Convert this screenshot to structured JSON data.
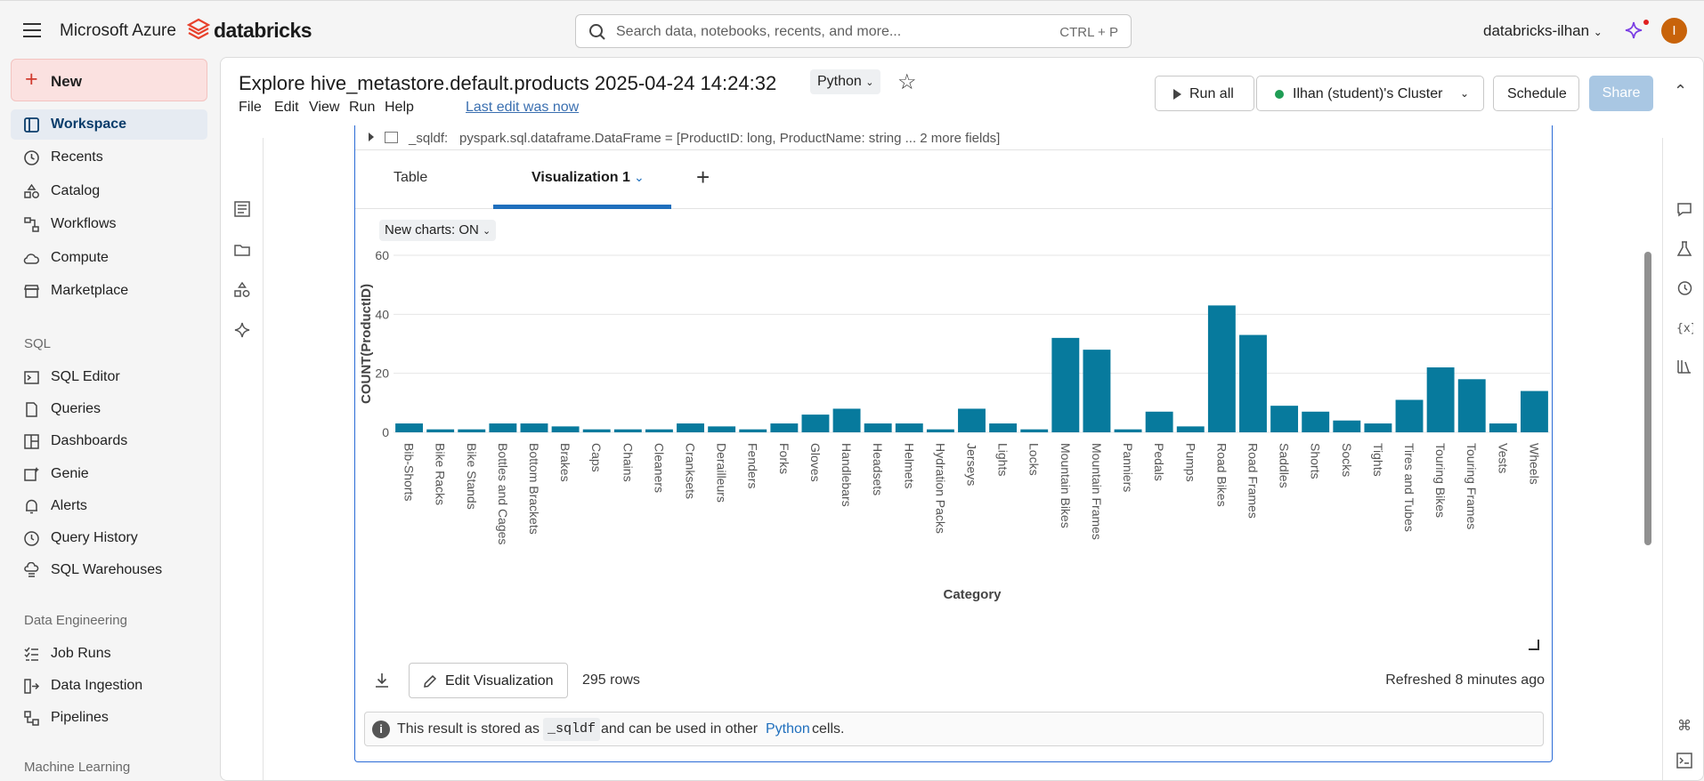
{
  "topbar": {
    "brand_ms": "Microsoft Azure",
    "brand_db": "databricks",
    "search_placeholder": "Search data, notebooks, recents, and more...",
    "search_shortcut": "CTRL + P",
    "workspace": "databricks-ilhan",
    "avatar_initial": "I"
  },
  "sidebar": {
    "new_label": "New",
    "items": [
      {
        "label": "Workspace",
        "icon": "workspace-icon",
        "active": true
      },
      {
        "label": "Recents",
        "icon": "clock-icon"
      },
      {
        "label": "Catalog",
        "icon": "catalog-icon"
      },
      {
        "label": "Workflows",
        "icon": "workflows-icon"
      },
      {
        "label": "Compute",
        "icon": "cloud-icon"
      },
      {
        "label": "Marketplace",
        "icon": "store-icon"
      }
    ],
    "sql_section": "SQL",
    "sql_items": [
      {
        "label": "SQL Editor",
        "icon": "sql-editor-icon"
      },
      {
        "label": "Queries",
        "icon": "queries-icon"
      },
      {
        "label": "Dashboards",
        "icon": "dashboards-icon"
      },
      {
        "label": "Genie",
        "icon": "genie-icon"
      },
      {
        "label": "Alerts",
        "icon": "bell-icon"
      },
      {
        "label": "Query History",
        "icon": "history-icon"
      },
      {
        "label": "SQL Warehouses",
        "icon": "warehouse-icon"
      }
    ],
    "de_section": "Data Engineering",
    "de_items": [
      {
        "label": "Job Runs",
        "icon": "job-runs-icon"
      },
      {
        "label": "Data Ingestion",
        "icon": "ingestion-icon"
      },
      {
        "label": "Pipelines",
        "icon": "pipelines-icon"
      }
    ],
    "ml_section": "Machine Learning"
  },
  "notebook": {
    "title": "Explore hive_metastore.default.products 2025-04-24 14:24:32",
    "language": "Python",
    "menu": [
      "File",
      "Edit",
      "View",
      "Run",
      "Help"
    ],
    "last_edit": "Last edit was now",
    "run_all": "Run all",
    "cluster": "Ilhan (student)'s Cluster",
    "schedule": "Schedule",
    "share": "Share"
  },
  "cell": {
    "df_name": "_sqldf:",
    "df_schema": "pyspark.sql.dataframe.DataFrame = [ProductID: long, ProductName: string ... 2 more fields]",
    "tabs": [
      "Table",
      "Visualization 1"
    ],
    "new_charts": "New charts: ON",
    "edit_visualization": "Edit Visualization",
    "rows": "295 rows",
    "refreshed": "Refreshed 8 minutes ago",
    "info_prefix": "This result is stored as",
    "info_var": "_sqldf",
    "info_mid": "and can be used in other",
    "info_link": "Python",
    "info_suffix": "cells."
  },
  "chart_data": {
    "type": "bar",
    "xlabel": "Category",
    "ylabel": "COUNT(ProductID)",
    "ylim": [
      0,
      60
    ],
    "yticks": [
      "0",
      "20",
      "40",
      "60"
    ],
    "grid": true,
    "color": "#077a9d",
    "categories": [
      "Bib-Shorts",
      "Bike Racks",
      "Bike Stands",
      "Bottles and Cages",
      "Bottom Brackets",
      "Brakes",
      "Caps",
      "Chains",
      "Cleaners",
      "Cranksets",
      "Derailleurs",
      "Fenders",
      "Forks",
      "Gloves",
      "Handlebars",
      "Headsets",
      "Helmets",
      "Hydration Packs",
      "Jerseys",
      "Lights",
      "Locks",
      "Mountain Bikes",
      "Mountain Frames",
      "Panniers",
      "Pedals",
      "Pumps",
      "Road Bikes",
      "Road Frames",
      "Saddles",
      "Shorts",
      "Socks",
      "Tights",
      "Tires and Tubes",
      "Touring Bikes",
      "Touring Frames",
      "Vests",
      "Wheels"
    ],
    "values": [
      3,
      1,
      1,
      3,
      3,
      2,
      1,
      1,
      1,
      3,
      2,
      1,
      3,
      6,
      8,
      3,
      3,
      1,
      8,
      3,
      1,
      32,
      28,
      1,
      7,
      2,
      43,
      33,
      9,
      7,
      4,
      3,
      11,
      22,
      18,
      3,
      14
    ]
  }
}
